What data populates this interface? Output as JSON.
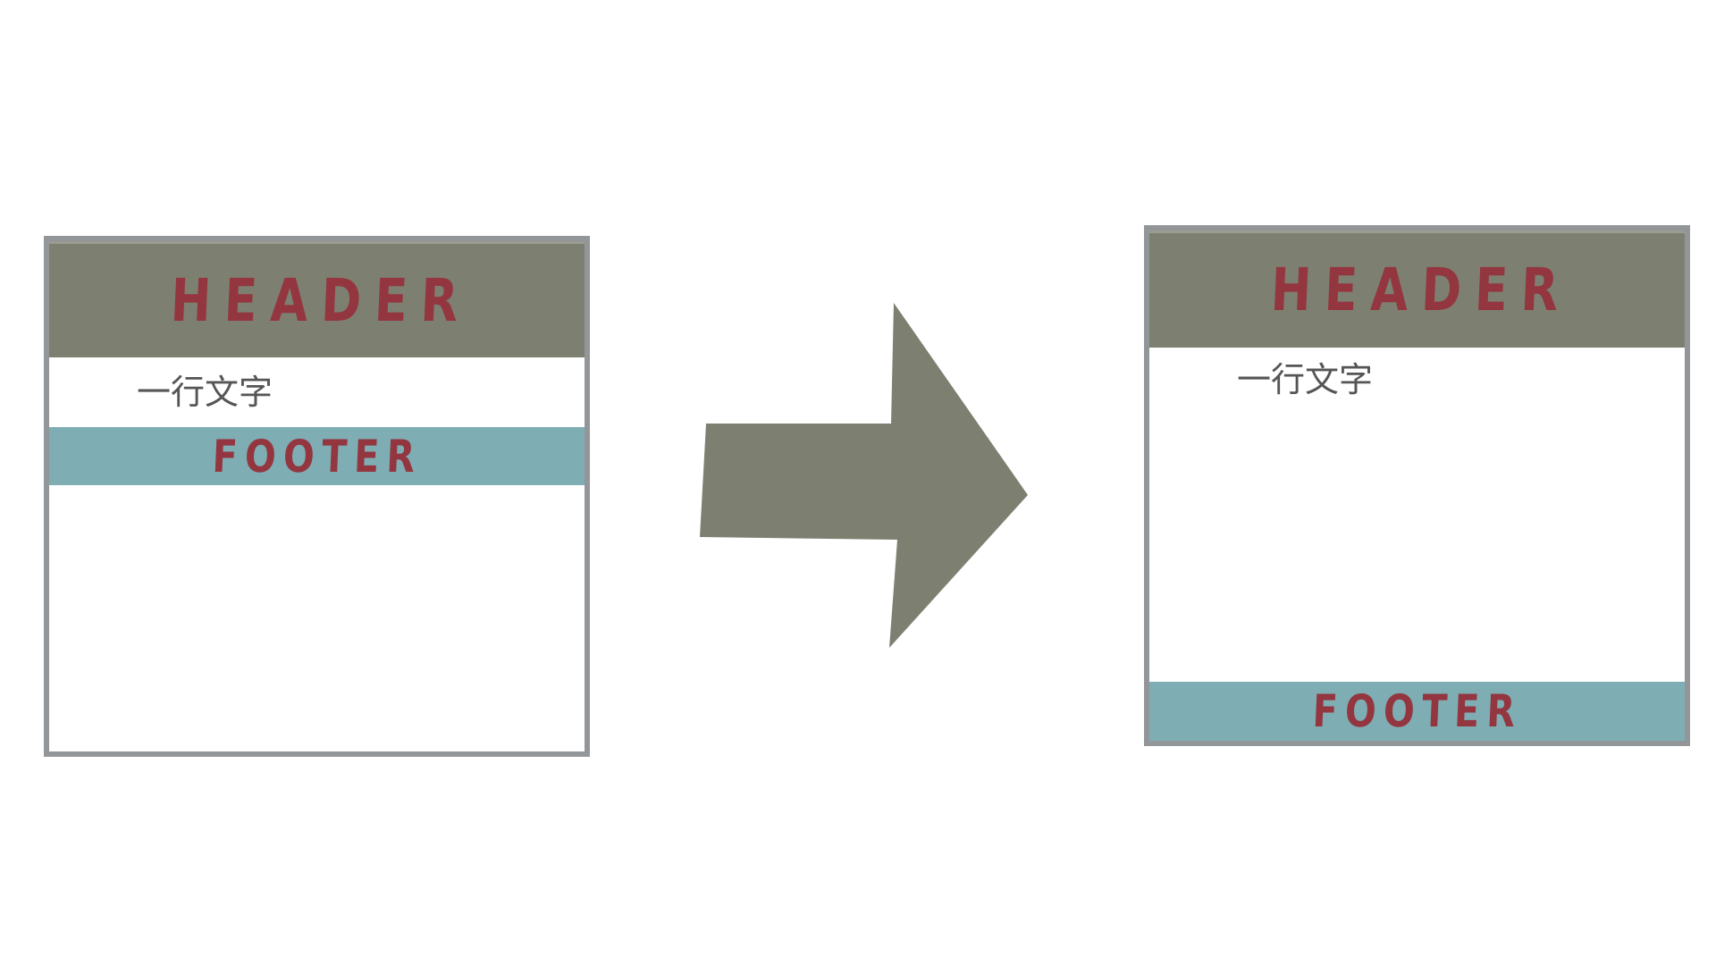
{
  "colors": {
    "frame_border": "#939699",
    "header_bg": "#7d8070",
    "footer_bg": "#7fadb4",
    "label_text": "#933640",
    "body_text": "#555555",
    "arrow_fill": "#7d8070"
  },
  "before": {
    "header_label": "HEADER",
    "content_text": "一行文字",
    "footer_label": "FOOTER"
  },
  "after": {
    "header_label": "HEADER",
    "content_text": "一行文字",
    "footer_label": "FOOTER"
  },
  "arrow": {
    "icon": "right-arrow-icon"
  }
}
